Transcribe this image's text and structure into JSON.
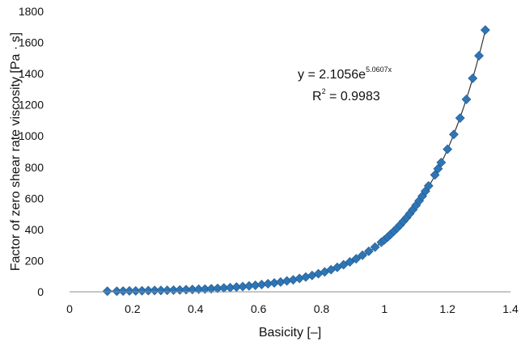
{
  "chart_data": {
    "type": "scatter",
    "xlabel": "Basicity [–]",
    "ylabel": "Factor of zero shear rate viscosity [Pa · s]",
    "xlim": [
      0,
      1.4
    ],
    "ylim": [
      0,
      1800
    ],
    "x_ticks": [
      "0",
      "0.2",
      "0.4",
      "0.6",
      "0.8",
      "1",
      "1.2",
      "1.4"
    ],
    "y_ticks": [
      "0",
      "200",
      "400",
      "600",
      "800",
      "1000",
      "1200",
      "1400",
      "1600",
      "1800"
    ],
    "grid": false,
    "marker_color": "#2E75B6",
    "trendline_color": "#333333",
    "fit": {
      "a": 2.1056,
      "b": 5.0607,
      "equation_prefix": "y = 2.1056e",
      "equation_exponent": "5.0607x",
      "r2_prefix": "R",
      "r2_exponent": "2",
      "r2_suffix": " = 0.9983"
    },
    "series": [
      {
        "x": [
          0.12,
          0.15,
          0.17,
          0.19,
          0.21,
          0.23,
          0.25,
          0.27,
          0.29,
          0.31,
          0.33,
          0.35,
          0.37,
          0.39,
          0.41,
          0.43,
          0.45,
          0.47,
          0.49,
          0.51,
          0.53,
          0.55,
          0.57,
          0.59,
          0.61,
          0.63,
          0.65,
          0.67,
          0.69,
          0.71,
          0.73,
          0.75,
          0.77,
          0.79,
          0.81,
          0.83,
          0.85,
          0.87,
          0.89,
          0.91,
          0.93,
          0.95,
          0.97,
          0.99,
          1.0,
          1.01,
          1.02,
          1.03,
          1.04,
          1.05,
          1.06,
          1.07,
          1.08,
          1.09,
          1.1,
          1.11,
          1.12,
          1.13,
          1.14,
          1.16,
          1.17,
          1.18,
          1.2,
          1.22,
          1.24,
          1.26,
          1.28,
          1.3,
          1.32
        ],
        "y": [
          4,
          4,
          5,
          6,
          6,
          7,
          8,
          9,
          9,
          10,
          11,
          12,
          14,
          15,
          17,
          18,
          20,
          22,
          25,
          27,
          31,
          34,
          38,
          42,
          47,
          52,
          57,
          63,
          70,
          77,
          86,
          95,
          105,
          116,
          128,
          142,
          157,
          174,
          192,
          212,
          235,
          260,
          287,
          318,
          334,
          351,
          370,
          389,
          409,
          430,
          453,
          476,
          501,
          527,
          555,
          584,
          614,
          646,
          680,
          750,
          790,
          830,
          915,
          1010,
          1115,
          1235,
          1370,
          1515,
          1680
        ]
      }
    ]
  }
}
